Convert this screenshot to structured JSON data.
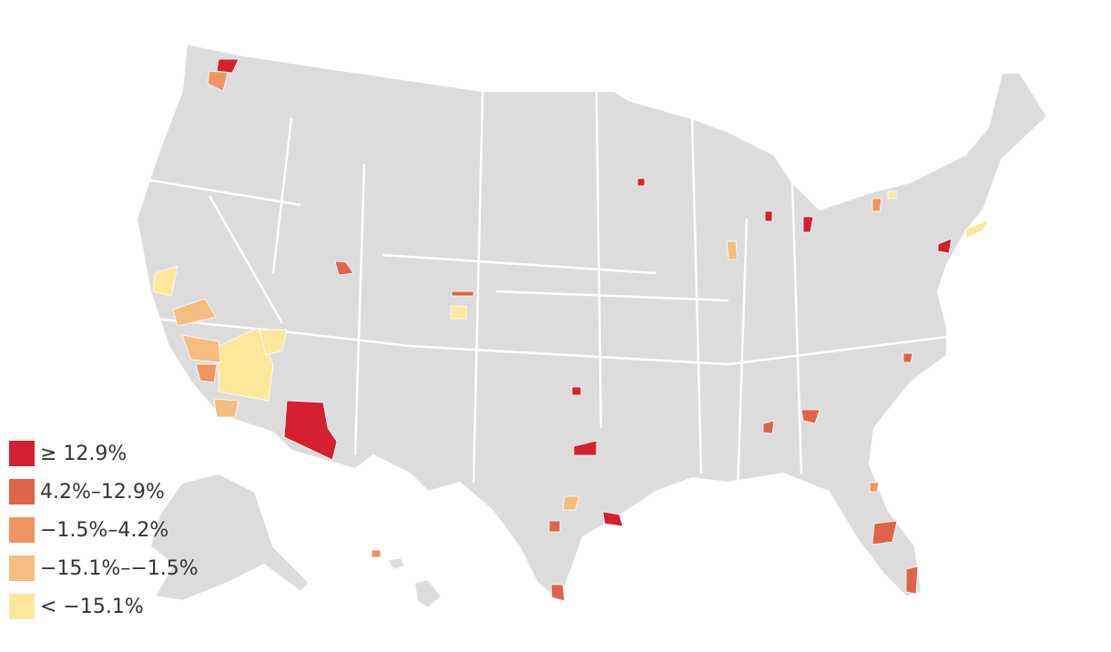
{
  "legend": {
    "items": [
      {
        "label": "≥ 12.9%",
        "color": "#d42030"
      },
      {
        "label": "4.2%–12.9%",
        "color": "#e0644a"
      },
      {
        "label": "−1.5%–4.2%",
        "color": "#ee9562"
      },
      {
        "label": "−15.1%–−1.5%",
        "color": "#f5bd80"
      },
      {
        "label": "< −15.1%",
        "color": "#fce89a"
      }
    ]
  }
}
